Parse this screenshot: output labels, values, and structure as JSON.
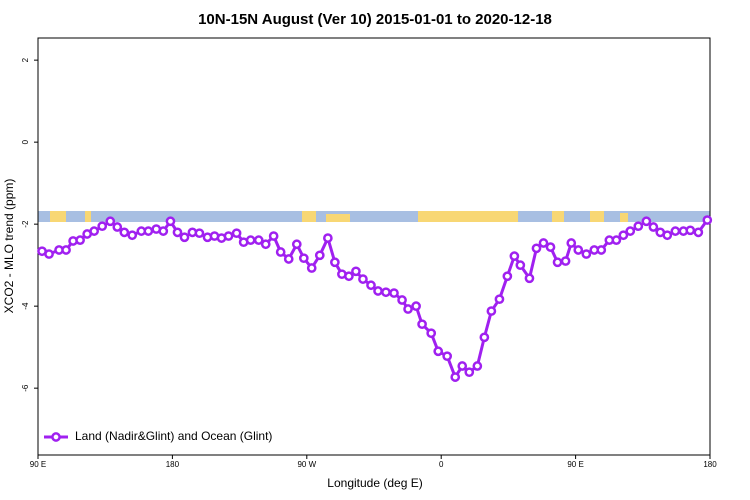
{
  "chart_data": {
    "type": "line",
    "title": "10N-15N August (Ver 10)   2015-01-01 to 2020-12-18",
    "xlabel": "Longitude (deg E)",
    "ylabel": "XCO2 - MLO trend (ppm)",
    "xlim": [
      90,
      540
    ],
    "ylim": [
      -7.63,
      2.54
    ],
    "xticks": [
      {
        "value": 90,
        "label": "90 E"
      },
      {
        "value": 180,
        "label": "180"
      },
      {
        "value": 270,
        "label": "90 W"
      },
      {
        "value": 360,
        "label": "0"
      },
      {
        "value": 450,
        "label": "90 E"
      },
      {
        "value": 540,
        "label": "180"
      }
    ],
    "yticks": [
      -6,
      -4,
      -2,
      0,
      2
    ],
    "legend": "bottom-left",
    "x": [
      92.7,
      97.4,
      104.1,
      108.8,
      113.5,
      118.2,
      122.9,
      127.6,
      133.0,
      138.4,
      143.1,
      147.8,
      153.1,
      159.2,
      163.9,
      169.2,
      173.9,
      178.7,
      183.4,
      188.1,
      193.4,
      198.1,
      203.5,
      208.2,
      212.9,
      217.6,
      223.0,
      227.7,
      232.4,
      237.8,
      242.5,
      247.8,
      252.5,
      257.9,
      263.3,
      268.0,
      273.3,
      278.7,
      284.1,
      288.8,
      293.5,
      298.2,
      302.9,
      307.6,
      313.0,
      317.7,
      323.0,
      328.4,
      333.8,
      337.8,
      343.2,
      347.2,
      353.3,
      358.0,
      364.0,
      369.4,
      374.1,
      378.8,
      384.2,
      388.9,
      393.6,
      399.0,
      404.3,
      409.0,
      413.0,
      419.1,
      423.8,
      428.5,
      433.2,
      437.9,
      443.3,
      447.1,
      451.8,
      457.2,
      462.5,
      467.2,
      472.6,
      477.3,
      482.0,
      486.6,
      492.0,
      497.4,
      502.1,
      506.7,
      511.4,
      516.8,
      522.2,
      526.8,
      532.2,
      538.2
    ],
    "series": [
      {
        "name": "Land (Nadir&Glint) and Ocean (Glint)",
        "color": "#a020f0",
        "values": [
          -2.66,
          -2.73,
          -2.63,
          -2.63,
          -2.41,
          -2.39,
          -2.24,
          -2.17,
          -2.05,
          -1.93,
          -2.07,
          -2.2,
          -2.27,
          -2.17,
          -2.17,
          -2.12,
          -2.17,
          -1.93,
          -2.2,
          -2.32,
          -2.2,
          -2.22,
          -2.32,
          -2.29,
          -2.34,
          -2.29,
          -2.22,
          -2.44,
          -2.39,
          -2.39,
          -2.49,
          -2.29,
          -2.68,
          -2.85,
          -2.49,
          -2.83,
          -3.07,
          -2.76,
          -2.34,
          -2.93,
          -3.22,
          -3.27,
          -3.15,
          -3.34,
          -3.49,
          -3.63,
          -3.66,
          -3.68,
          -3.85,
          -4.07,
          -4.0,
          -4.44,
          -4.66,
          -5.1,
          -5.22,
          -5.73,
          -5.46,
          -5.61,
          -5.46,
          -4.76,
          -4.12,
          -3.83,
          -3.27,
          -2.78,
          -3.0,
          -3.32,
          -2.59,
          -2.46,
          -2.56,
          -2.93,
          -2.9,
          -2.46,
          -2.63,
          -2.73,
          -2.63,
          -2.63,
          -2.39,
          -2.39,
          -2.27,
          -2.17,
          -2.05,
          -1.93,
          -2.07,
          -2.2,
          -2.27,
          -2.17,
          -2.17,
          -2.15,
          -2.2,
          -1.9
        ]
      }
    ]
  }
}
